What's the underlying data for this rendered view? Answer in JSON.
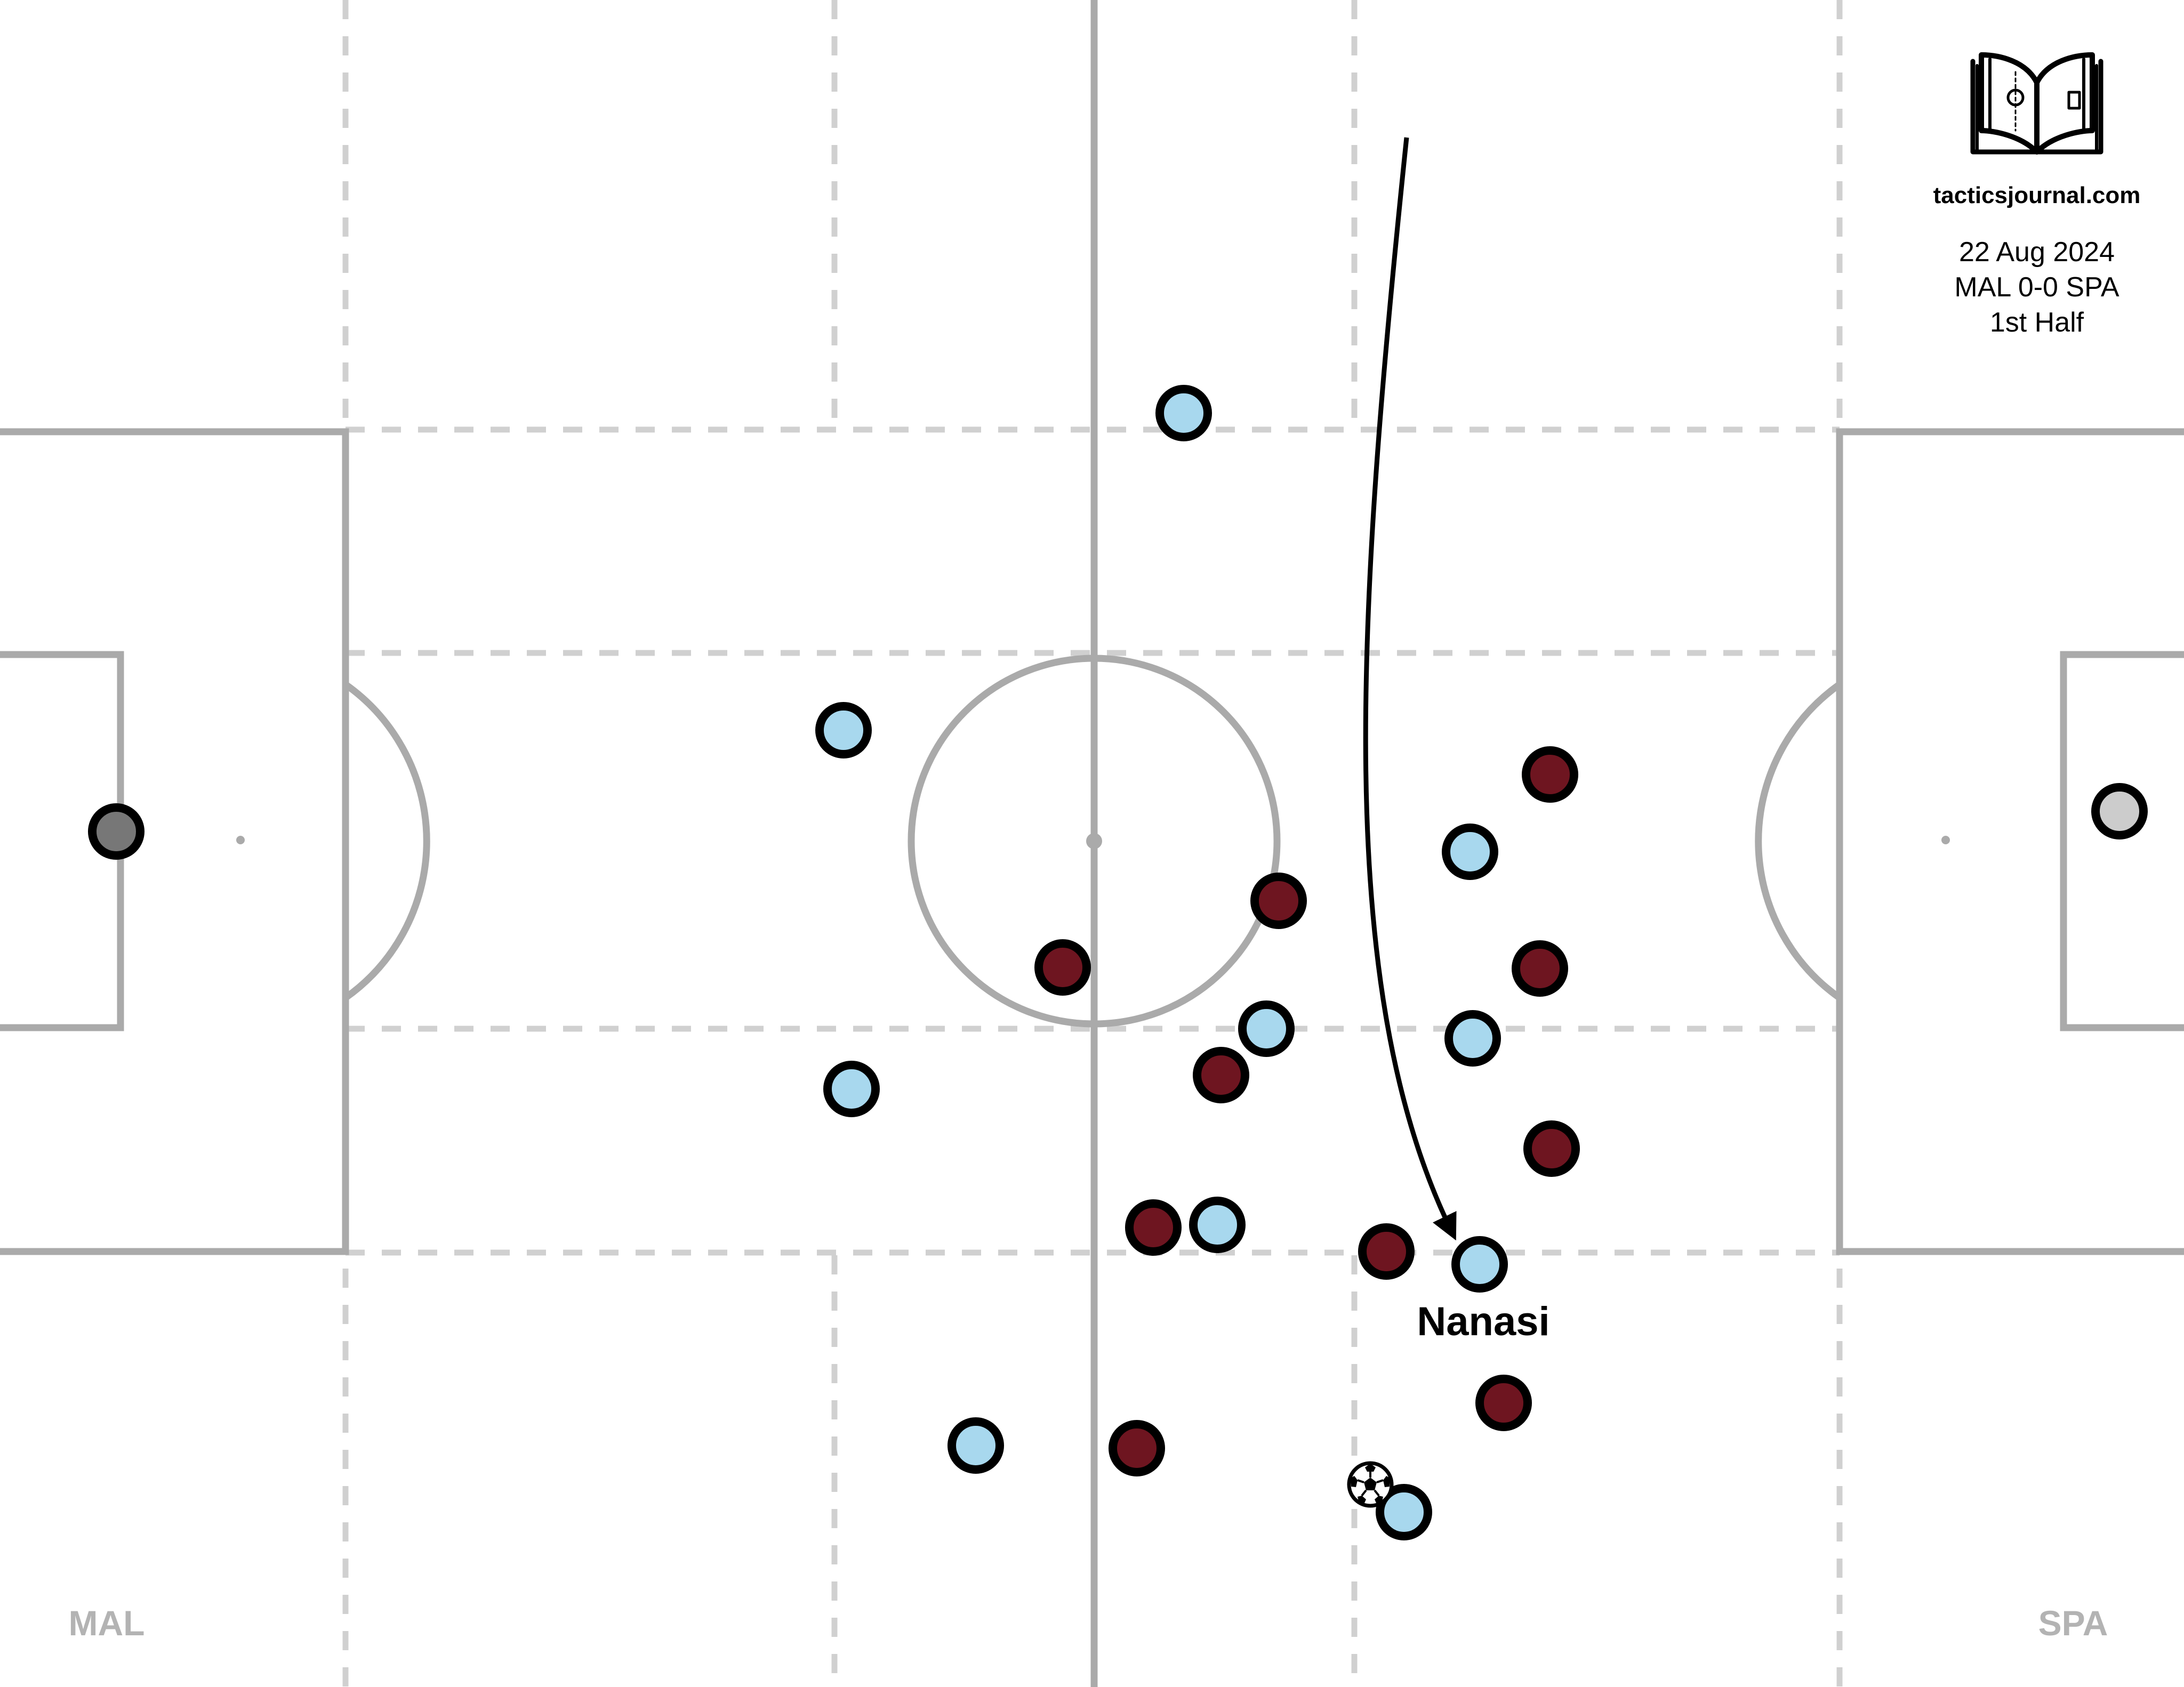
{
  "brand": {
    "site": "tacticsjournal.com",
    "logo_icon": "open-book-icon"
  },
  "match": {
    "date": "22 Aug 2024",
    "score": "MAL 0-0 SPA",
    "period": "1st Half"
  },
  "teams": {
    "left": "MAL",
    "right": "SPA"
  },
  "colors": {
    "team_light": "#a8d8ee",
    "team_dark": "#6e1520",
    "keeper_left": "#777777",
    "keeper_right": "#cccccc",
    "pitch_lines": "#aaaaaa",
    "zone_lines": "#d0d0d0"
  },
  "annotation": {
    "player_name": "Nanasi",
    "run_arrow": "curved-arrow"
  },
  "ball_icon": "soccer-ball-icon"
}
